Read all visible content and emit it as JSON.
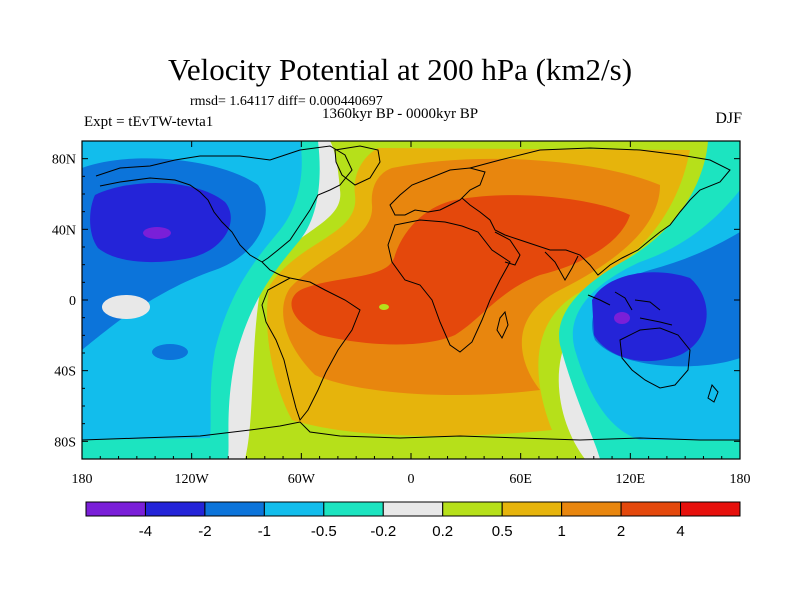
{
  "title": "Velocity Potential at 200 hPa (km2/s)",
  "stats": "rmsd= 1.64117 diff= 0.000440697",
  "period": "1360kyr BP - 0000kyr BP",
  "experiment": "Expt = tEvTW-tevta1",
  "season": "DJF",
  "map": {
    "lon_range": [
      -180,
      180
    ],
    "lat_range": [
      -90,
      90
    ],
    "lon_tick_values": [
      -180,
      -120,
      -60,
      0,
      60,
      120,
      180
    ],
    "lon_tick_labels": [
      "180",
      "120W",
      "60W",
      "0",
      "60E",
      "120E",
      "180"
    ],
    "lat_tick_values": [
      80,
      40,
      0,
      -40,
      -80
    ],
    "lat_tick_labels": [
      "80N",
      "40N",
      "0",
      "40S",
      "80S"
    ],
    "background_color": "#E8E8E8",
    "coastline_color": "#000000"
  },
  "colorbar": {
    "colors": [
      "#7A1FD8",
      "#2424D8",
      "#0C74DA",
      "#12BDEC",
      "#1CE4C0",
      "#E8E8E8",
      "#B6E01A",
      "#E6B40C",
      "#E8860E",
      "#E4480C",
      "#E6100C"
    ],
    "labels": [
      "-4",
      "-2",
      "-1",
      "-0.5",
      "-0.2",
      "0.2",
      "0.5",
      "1",
      "2",
      "4"
    ]
  },
  "field_centers": [
    {
      "lon": -160,
      "lat": 35,
      "value": -4.2
    },
    {
      "lon": 115,
      "lat": -15,
      "value": -4.2
    },
    {
      "lon": -40,
      "lat": -18,
      "value": 3.0
    },
    {
      "lon": 30,
      "lat": 18,
      "value": 3.0
    }
  ]
}
